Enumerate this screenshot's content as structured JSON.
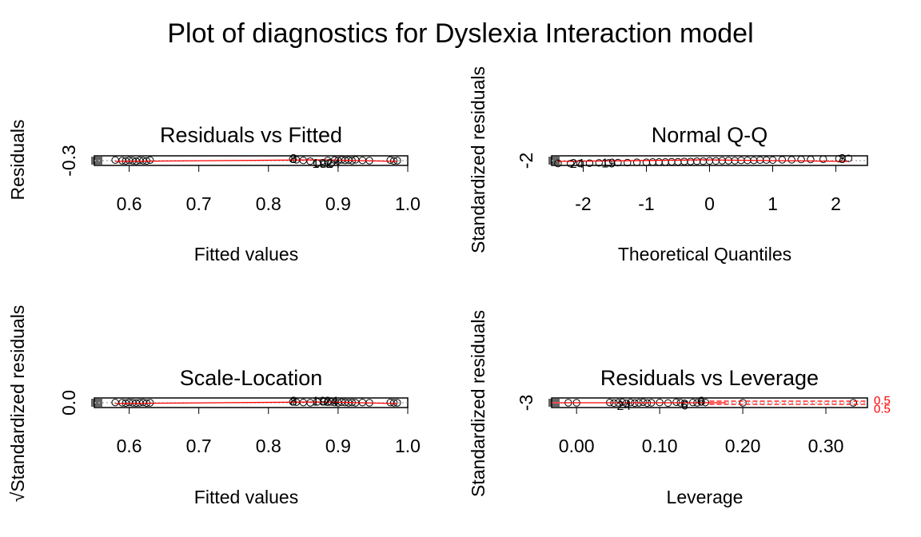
{
  "figure": {
    "title": "Plot of diagnostics for Dyslexia Interaction model",
    "colors": {
      "points": "#000000",
      "smoother": "#ff0000",
      "cooks_contour": "#ff0000",
      "grid": "#888888"
    }
  },
  "chart_data": [
    {
      "type": "scatter",
      "title": "Residuals vs Fitted",
      "xlabel": "Fitted values",
      "ylabel": "Residuals",
      "xlim": [
        0.55,
        1.0
      ],
      "x_ticks": [
        "0.6",
        "0.7",
        "0.8",
        "0.9",
        "1.0"
      ],
      "y_ticks": [
        "-0.3"
      ],
      "points": {
        "x": [
          0.58,
          0.59,
          0.595,
          0.6,
          0.605,
          0.61,
          0.615,
          0.62,
          0.625,
          0.63,
          0.835,
          0.84,
          0.85,
          0.86,
          0.87,
          0.88,
          0.885,
          0.89,
          0.895,
          0.9,
          0.905,
          0.91,
          0.915,
          0.92,
          0.925,
          0.935,
          0.945,
          0.975,
          0.98,
          0.985
        ],
        "y": [
          0.02,
          0.0,
          -0.01,
          0.01,
          0.0,
          -0.02,
          0.01,
          0.0,
          -0.01,
          0.02,
          0.05,
          0.03,
          0.01,
          -0.02,
          -0.1,
          -0.12,
          0.0,
          -0.1,
          0.02,
          0.0,
          0.03,
          0.01,
          0.02,
          0.0,
          0.03,
          0.01,
          0.0,
          0.02,
          -0.01,
          0.0
        ]
      },
      "labels": [
        {
          "text": "8",
          "x": 0.836,
          "y": 0.06
        },
        {
          "text": "19",
          "x": 0.873,
          "y": -0.11
        },
        {
          "text": "24",
          "x": 0.893,
          "y": -0.11
        }
      ]
    },
    {
      "type": "scatter",
      "title": "Normal Q-Q",
      "xlabel": "Theoretical Quantiles",
      "ylabel": "Standardized residuals",
      "xlim": [
        -2.5,
        2.5
      ],
      "x_ticks": [
        "-2",
        "-1",
        "0",
        "1",
        "2"
      ],
      "y_ticks": [
        "-2"
      ],
      "points": {
        "x": [
          -2.4,
          -2.2,
          -2.05,
          -1.9,
          -1.75,
          -1.6,
          -1.45,
          -1.3,
          -1.15,
          -1.0,
          -0.9,
          -0.8,
          -0.7,
          -0.6,
          -0.5,
          -0.4,
          -0.3,
          -0.2,
          -0.1,
          0.0,
          0.1,
          0.2,
          0.3,
          0.4,
          0.5,
          0.6,
          0.7,
          0.8,
          0.9,
          1.0,
          1.15,
          1.3,
          1.45,
          1.6,
          1.8,
          2.05,
          2.2
        ],
        "y": [
          -0.1,
          -0.11,
          -0.1,
          -0.09,
          -0.08,
          -0.08,
          -0.07,
          -0.07,
          -0.06,
          -0.06,
          -0.05,
          -0.05,
          -0.05,
          -0.04,
          -0.04,
          -0.03,
          -0.03,
          -0.02,
          -0.02,
          -0.01,
          -0.01,
          0.0,
          0.0,
          0.0,
          0.01,
          0.01,
          0.01,
          0.02,
          0.02,
          0.02,
          0.03,
          0.03,
          0.04,
          0.04,
          0.05,
          0.07,
          0.08
        ]
      },
      "labels": [
        {
          "text": "24",
          "x": -2.1,
          "y": -0.11
        },
        {
          "text": "19",
          "x": -1.6,
          "y": -0.1
        },
        {
          "text": "8",
          "x": 2.1,
          "y": 0.06
        }
      ]
    },
    {
      "type": "scatter",
      "title": "Scale-Location",
      "xlabel": "Fitted values",
      "ylabel": "√Standardized residuals",
      "xlim": [
        0.55,
        1.0
      ],
      "x_ticks": [
        "0.6",
        "0.7",
        "0.8",
        "0.9",
        "1.0"
      ],
      "y_ticks": [
        "0.0"
      ],
      "points": {
        "x": [
          0.58,
          0.59,
          0.595,
          0.6,
          0.605,
          0.61,
          0.615,
          0.62,
          0.625,
          0.63,
          0.835,
          0.84,
          0.85,
          0.86,
          0.87,
          0.88,
          0.885,
          0.89,
          0.895,
          0.9,
          0.905,
          0.91,
          0.915,
          0.92,
          0.925,
          0.935,
          0.945,
          0.975,
          0.98,
          0.985
        ],
        "y": [
          0.01,
          0.0,
          -0.01,
          0.01,
          0.0,
          -0.01,
          0.0,
          0.01,
          -0.01,
          0.0,
          0.03,
          0.02,
          0.01,
          0.0,
          0.03,
          0.04,
          0.02,
          0.03,
          0.01,
          0.0,
          0.02,
          0.01,
          0.0,
          0.01,
          0.0,
          0.01,
          0.0,
          0.01,
          0.0,
          0.0
        ]
      },
      "labels": [
        {
          "text": "8",
          "x": 0.836,
          "y": 0.05
        },
        {
          "text": "19",
          "x": 0.873,
          "y": 0.05
        },
        {
          "text": "24",
          "x": 0.89,
          "y": 0.05
        }
      ]
    },
    {
      "type": "scatter",
      "title": "Residuals vs Leverage",
      "xlabel": "Leverage",
      "ylabel": "Standardized residuals",
      "xlim": [
        -0.03,
        0.35
      ],
      "x_ticks": [
        "0.00",
        "0.10",
        "0.20",
        "0.30"
      ],
      "y_ticks": [
        "-3"
      ],
      "points": {
        "x": [
          -0.01,
          0.0,
          0.04,
          0.045,
          0.05,
          0.055,
          0.06,
          0.065,
          0.07,
          0.075,
          0.08,
          0.085,
          0.09,
          0.1,
          0.11,
          0.12,
          0.125,
          0.13,
          0.14,
          0.145,
          0.15,
          0.155,
          0.2,
          0.333
        ],
        "y": [
          0.0,
          0.0,
          0.01,
          -0.01,
          0.0,
          0.02,
          -0.02,
          0.01,
          -0.01,
          0.0,
          0.02,
          -0.01,
          0.0,
          0.01,
          -0.01,
          0.02,
          0.0,
          -0.02,
          0.01,
          0.0,
          0.03,
          0.01,
          0.0,
          0.0
        ]
      },
      "labels": [
        {
          "text": "24",
          "x": 0.057,
          "y": -0.12
        },
        {
          "text": "6",
          "x": 0.13,
          "y": -0.1
        },
        {
          "text": "6",
          "x": 0.15,
          "y": 0.04
        }
      ],
      "cooks_labels": [
        {
          "text": "0.5",
          "y": 0.03
        },
        {
          "text": "0.5",
          "y": -0.07
        }
      ]
    }
  ]
}
